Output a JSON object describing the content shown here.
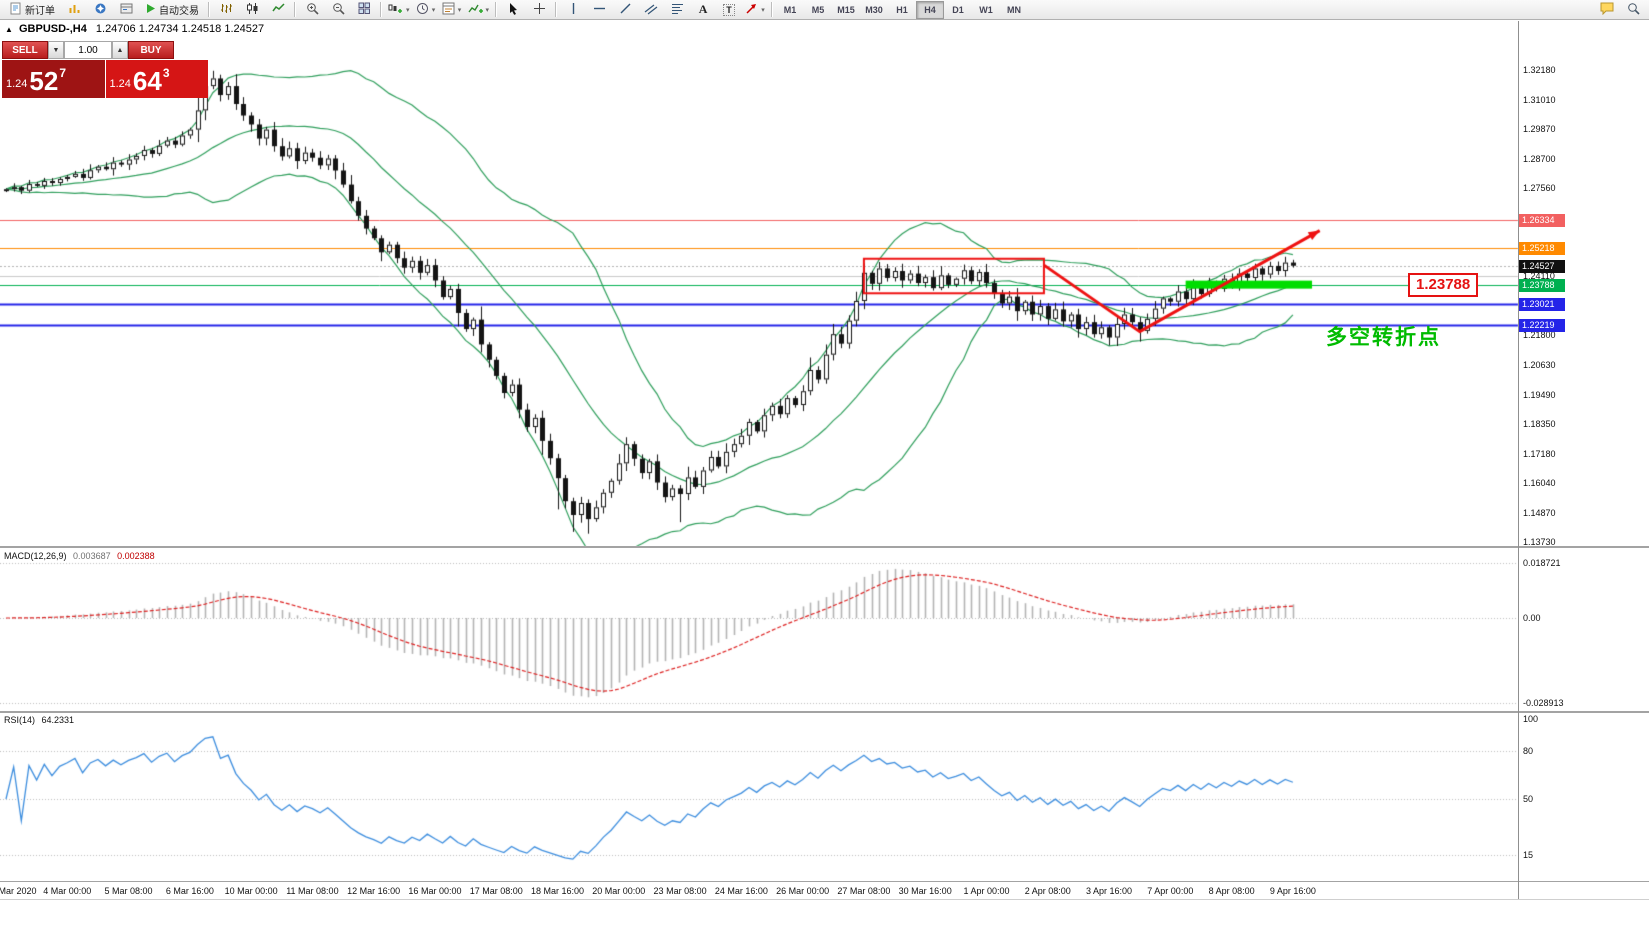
{
  "colors": {
    "band": "#2e9e5b",
    "bull": "#ffffff",
    "bear": "#141414",
    "wick": "#141414",
    "macd_hist": "#b4b4b4",
    "macd_signal": "#dd2222",
    "rsi_line": "#3c8dde",
    "annotation_red": "#ee1111",
    "highlight_green": "#00dd00"
  },
  "toolbar": {
    "new_order": "新订单",
    "autotrading": "自动交易",
    "timeframes": [
      "M1",
      "M5",
      "M15",
      "M30",
      "H1",
      "H4",
      "D1",
      "W1",
      "MN"
    ],
    "active_timeframe": "H4"
  },
  "chart_header": {
    "symbol": "GBPUSD-,H4",
    "ohlc": "1.24706 1.24734 1.24518 1.24527"
  },
  "trade_panel": {
    "sell_label": "SELL",
    "buy_label": "BUY",
    "lot": "1.00",
    "sell_price": {
      "small": "1.24",
      "big": "52",
      "sup": "7"
    },
    "buy_price": {
      "small": "1.24",
      "big": "64",
      "sup": "3"
    }
  },
  "chart_data": {
    "type": "candlestick",
    "symbol": "GBPUSD-",
    "timeframe": "H4",
    "window_ohlc": {
      "open": "1.24706",
      "high": "1.24734",
      "low": "1.24518",
      "close": "1.24527"
    },
    "first_open": 1.2745,
    "closes": [
      1.2752,
      1.276,
      1.2746,
      1.2772,
      1.2765,
      1.2784,
      1.2776,
      1.2792,
      1.28,
      1.2812,
      1.2796,
      1.2826,
      1.284,
      1.283,
      1.2856,
      1.2848,
      1.2868,
      1.2882,
      1.2905,
      1.289,
      1.2922,
      1.2942,
      1.2926,
      1.2962,
      1.2985,
      1.306,
      1.3155,
      1.3185,
      1.312,
      1.3155,
      1.3085,
      1.304,
      1.3005,
      1.295,
      1.2985,
      1.292,
      1.288,
      1.2912,
      1.2862,
      1.2895,
      1.2875,
      1.2845,
      1.2872,
      1.2825,
      1.277,
      1.2705,
      1.2648,
      1.2598,
      1.256,
      1.2505,
      1.2535,
      1.2482,
      1.2445,
      1.2472,
      1.2425,
      1.2455,
      1.2395,
      1.233,
      1.2362,
      1.2268,
      1.2205,
      1.2242,
      1.2145,
      1.2085,
      1.2022,
      1.1955,
      1.1988,
      1.189,
      1.1822,
      1.1858,
      1.1768,
      1.17,
      1.1622,
      1.1532,
      1.1478,
      1.1525,
      1.1462,
      1.1508,
      1.1565,
      1.1612,
      1.168,
      1.1755,
      1.1698,
      1.1642,
      1.1688,
      1.1605,
      1.1548,
      1.1582,
      1.156,
      1.1625,
      1.1588,
      1.1652,
      1.1705,
      1.1668,
      1.1725,
      1.1755,
      1.1788,
      1.1842,
      1.1805,
      1.1868,
      1.1905,
      1.1872,
      1.1935,
      1.1908,
      1.1962,
      1.2045,
      1.2008,
      1.2105,
      1.2185,
      1.2148,
      1.2238,
      1.2315,
      1.2425,
      1.2382,
      1.2442,
      1.2405,
      1.2432,
      1.2395,
      1.2422,
      1.2385,
      1.2408,
      1.2365,
      1.2415,
      1.2378,
      1.2402,
      1.2435,
      1.2392,
      1.2428,
      1.2385,
      1.2342,
      1.2305,
      1.2332,
      1.2275,
      1.2312,
      1.2262,
      1.2295,
      1.2245,
      1.2282,
      1.2235,
      1.2262,
      1.2205,
      1.2232,
      1.2185,
      1.2212,
      1.2172,
      1.2225,
      1.2262,
      1.2232,
      1.2198,
      1.2245,
      1.2285,
      1.2325,
      1.2312,
      1.2352,
      1.2322,
      1.2368,
      1.2342,
      1.2385,
      1.2362,
      1.2402,
      1.2382,
      1.2422,
      1.2405,
      1.2442,
      1.2418,
      1.2452,
      1.2432,
      1.2465,
      1.24527
    ],
    "bollinger": {
      "period": 20,
      "deviation": 2
    },
    "wick_high_overrides": {
      "25": 1.312,
      "26": 1.3205,
      "27": 1.3215,
      "112": 1.2462
    },
    "wick_low_overrides": {
      "72": 1.15,
      "74": 1.1412,
      "76": 1.1405,
      "88": 1.145,
      "144": 1.2158,
      "148": 1.2156
    },
    "price_axis_labels": [
      "1.32180",
      "1.31010",
      "1.29870",
      "1.28700",
      "1.27560",
      "1.24110",
      "1.21800",
      "1.20630",
      "1.19490",
      "1.18350",
      "1.17180",
      "1.16040",
      "1.14870",
      "1.13730"
    ],
    "price_tags": [
      {
        "text": "1.26334",
        "price": 1.26334,
        "bg": "#f26060"
      },
      {
        "text": "1.25218",
        "price": 1.25218,
        "bg": "#ff8a00"
      },
      {
        "text": "1.24527",
        "price": 1.24527,
        "bg": "#101010"
      },
      {
        "text": "1.23788",
        "price": 1.23788,
        "bg": "#00b050"
      },
      {
        "text": "1.23021",
        "price": 1.23021,
        "bg": "#2424e8"
      },
      {
        "text": "1.22219",
        "price": 1.22219,
        "bg": "#2424e8"
      }
    ],
    "hlines": [
      {
        "price": 1.26334,
        "color": "#f26060",
        "w": 1
      },
      {
        "price": 1.25218,
        "color": "#ff8a00",
        "w": 1
      },
      {
        "price": 1.24527,
        "color": "#b0b0b0",
        "w": 1,
        "dash": [
          2,
          2
        ]
      },
      {
        "price": 1.2411,
        "color": "#c9c9c9",
        "w": 1
      },
      {
        "price": 1.23788,
        "color": "#00b050",
        "w": 1
      },
      {
        "price": 1.23021,
        "color": "#2424e8",
        "w": 2
      },
      {
        "price": 1.22219,
        "color": "#2424e8",
        "w": 2
      }
    ],
    "annotations": {
      "rect": {
        "c1": 112,
        "c2": 135.5,
        "p1": 1.248,
        "p2": 1.2345
      },
      "arrow": {
        "points": [
          [
            135.5,
            1.2455
          ],
          [
            148,
            1.2195
          ],
          [
            171.5,
            1.259
          ]
        ]
      },
      "green_bar": {
        "c1": 154,
        "c2": 170.5,
        "price": 1.23788,
        "half": 4
      },
      "callout_text": "1.23788",
      "note_text": "多空转折点",
      "note_price": 1.2238
    },
    "time_labels": [
      "Mar 2020",
      "4 Mar 00:00",
      "5 Mar 08:00",
      "6 Mar 16:00",
      "10 Mar 00:00",
      "11 Mar 08:00",
      "12 Mar 16:00",
      "16 Mar 00:00",
      "17 Mar 08:00",
      "18 Mar 16:00",
      "20 Mar 00:00",
      "23 Mar 08:00",
      "24 Mar 16:00",
      "26 Mar 00:00",
      "27 Mar 08:00",
      "30 Mar 16:00",
      "1 Apr 00:00",
      "2 Apr 08:00",
      "3 Apr 16:00",
      "7 Apr 00:00",
      "8 Apr 08:00",
      "9 Apr 16:00"
    ],
    "macd": {
      "label": "MACD(12,26,9)",
      "value_macd": "0.003687",
      "value_signal": "0.002388",
      "fast": 12,
      "slow": 26,
      "signal_period": 9,
      "axis_labels": [
        {
          "text": "0.018721",
          "v": 0.018721
        },
        {
          "text": "0.00",
          "v": 0
        },
        {
          "text": "-0.028913",
          "v": -0.028913
        }
      ]
    },
    "rsi": {
      "label": "RSI(14)",
      "value": "64.2331",
      "period": 14,
      "axis_labels": [
        {
          "text": "100",
          "v": 100
        },
        {
          "text": "80",
          "v": 80
        },
        {
          "text": "50",
          "v": 50
        },
        {
          "text": "15",
          "v": 15
        }
      ],
      "grid_levels": [
        80,
        50,
        15
      ]
    }
  }
}
